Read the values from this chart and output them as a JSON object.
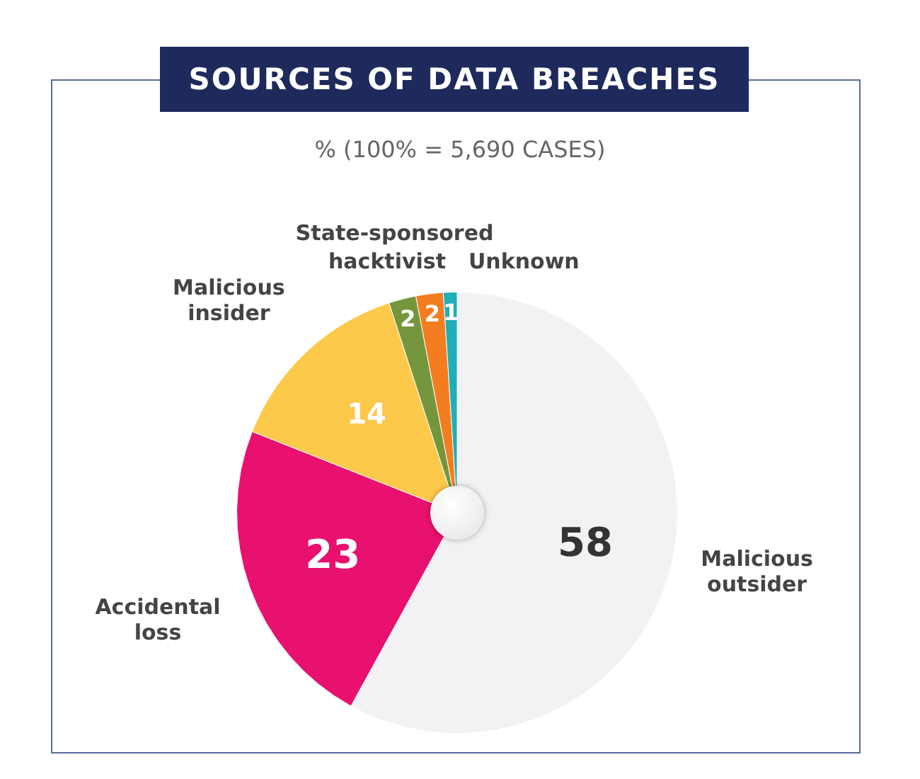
{
  "chart_data": {
    "type": "pie",
    "title": "SOURCES OF DATA BREACHES",
    "subtitle": "% (100% = 5,690 CASES)",
    "categories": [
      "Malicious outsider",
      "Accidental loss",
      "Malicious insider",
      "State-sponsored",
      "hacktivist",
      "Unknown"
    ],
    "values": [
      58,
      23,
      14,
      2,
      2,
      1
    ],
    "colors": [
      "#f2f2f4",
      "#e8116f",
      "#fdc94a",
      "#76963d",
      "#f47d20",
      "#20aeb7"
    ],
    "data_labels": true
  }
}
